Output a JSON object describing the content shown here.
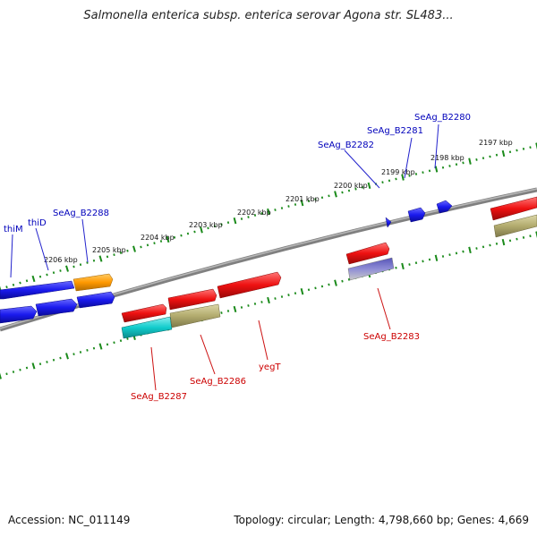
{
  "header": {
    "title": "Salmonella enterica subsp. enterica serovar Agona str. SL483..."
  },
  "footer": {
    "accession": "Accession: NC_011149",
    "summary": "Topology: circular; Length: 4,798,660 bp; Genes: 4,669"
  },
  "map": {
    "kbp_labels": [
      "2197 kbp",
      "2198 kbp",
      "2199 kbp",
      "2200 kbp",
      "2201 kbp",
      "2202 kbp",
      "2203 kbp",
      "2204 kbp",
      "2205 kbp",
      "2206 kbp"
    ],
    "forward_labels": [
      "SeAg_B2280",
      "SeAg_B2281",
      "SeAg_B2282",
      "SeAg_B2288",
      "thiD",
      "thiM"
    ],
    "reverse_labels": [
      "SeAg_B2283",
      "yegT",
      "SeAg_B2286",
      "SeAg_B2287"
    ],
    "colors": {
      "forward_gene": "#1a1aee",
      "reverse_gene": "#ee1111",
      "orange_feature": "#ff9900",
      "cyan_feature": "#11cccc",
      "olive_feature": "#b2ab6e",
      "purple_feature": "#7b79cc",
      "backbone": "#808080",
      "ticks": "#1a8a1a",
      "forward_label": "#0000bb",
      "reverse_label": "#cc0000"
    }
  }
}
